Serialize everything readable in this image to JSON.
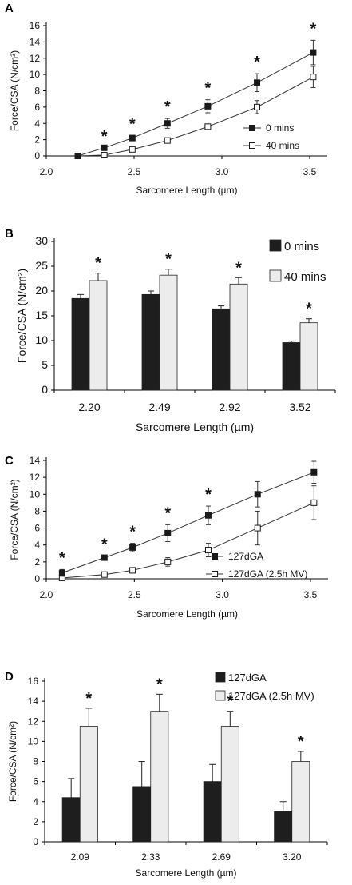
{
  "panels": [
    {
      "label": "A",
      "chart_data": {
        "type": "line",
        "xlabel": "Sarcomere Length (µm)",
        "ylabel": "Force/CSA (N/cm²)",
        "xlim": [
          2.0,
          3.6
        ],
        "ylim": [
          0,
          16
        ],
        "xticks": [
          "2.0",
          "2.5",
          "3.0",
          "3.5"
        ],
        "yticks": [
          "0",
          "2",
          "4",
          "6",
          "8",
          "10",
          "12",
          "14",
          "16"
        ],
        "legend_position": "right",
        "series": [
          {
            "name": "0 mins",
            "marker": "filled-square",
            "x": [
              2.18,
              2.33,
              2.49,
              2.69,
              2.92,
              3.2,
              3.52
            ],
            "y": [
              0.0,
              1.0,
              2.2,
              4.0,
              6.1,
              9.0,
              12.7
            ],
            "err": [
              0,
              0,
              0.3,
              0.6,
              0.8,
              1.1,
              1.5
            ]
          },
          {
            "name": "40 mins",
            "marker": "open-square",
            "x": [
              2.18,
              2.33,
              2.49,
              2.69,
              2.92,
              3.2,
              3.52
            ],
            "y": [
              0.0,
              0.1,
              0.8,
              1.9,
              3.6,
              6.0,
              9.7
            ],
            "err": [
              0,
              0,
              0,
              0,
              0,
              0.8,
              1.3
            ]
          }
        ],
        "significance_x": [
          2.33,
          2.49,
          2.69,
          2.92,
          3.2,
          3.52
        ],
        "significance_mark": "*"
      }
    },
    {
      "label": "B",
      "chart_data": {
        "type": "bar",
        "xlabel": "Sarcomere Length (µm)",
        "ylabel": "Force/CSA (N/cm²)",
        "ylim": [
          0,
          30
        ],
        "yticks": [
          "0",
          "5",
          "10",
          "15",
          "20",
          "25",
          "30"
        ],
        "categories": [
          "2.20",
          "2.49",
          "2.92",
          "3.52"
        ],
        "legend_position": "top-right",
        "series": [
          {
            "name": "0 mins",
            "color": "#1e1e1e",
            "values": [
              18.5,
              19.3,
              16.4,
              9.6
            ],
            "err": [
              0.8,
              0.7,
              0.6,
              0.3
            ]
          },
          {
            "name": "40 mins",
            "color": "#ececec",
            "values": [
              22.1,
              23.2,
              21.4,
              13.6
            ],
            "err": [
              1.5,
              1.2,
              1.3,
              0.8
            ]
          }
        ],
        "significance_series": "40 mins",
        "significance_mark": "*"
      }
    },
    {
      "label": "C",
      "chart_data": {
        "type": "line",
        "xlabel": "Sarcomere Length (µm)",
        "ylabel": "Force/CSA (N/cm²)",
        "xlim": [
          2.0,
          3.6
        ],
        "ylim": [
          0,
          14
        ],
        "xticks": [
          "2.0",
          "2.5",
          "3.0",
          "3.5"
        ],
        "yticks": [
          "0",
          "2",
          "4",
          "6",
          "8",
          "10",
          "12",
          "14"
        ],
        "legend_position": "bottom-right",
        "series": [
          {
            "name": "127dGA",
            "marker": "filled-square",
            "x": [
              2.09,
              2.33,
              2.49,
              2.69,
              2.92,
              3.2,
              3.52
            ],
            "y": [
              0.7,
              2.5,
              3.7,
              5.4,
              7.5,
              10.0,
              12.6
            ],
            "err": [
              0.4,
              0.2,
              0.5,
              1.0,
              1.1,
              1.5,
              1.3
            ]
          },
          {
            "name": "127dGA (2.5h MV)",
            "marker": "open-square",
            "x": [
              2.09,
              2.33,
              2.49,
              2.69,
              2.92,
              3.2,
              3.52
            ],
            "y": [
              0.1,
              0.5,
              1.0,
              2.0,
              3.4,
              6.0,
              9.0
            ],
            "err": [
              0,
              0,
              0,
              0.5,
              0.8,
              2.0,
              2.0
            ]
          }
        ],
        "significance_x": [
          2.09,
          2.33,
          2.49,
          2.69,
          2.92
        ],
        "significance_mark": "*"
      }
    },
    {
      "label": "D",
      "chart_data": {
        "type": "bar",
        "xlabel": "Sarcomere Length (µm)",
        "ylabel": "Force/CSA (N/cm²)",
        "ylim": [
          0,
          16
        ],
        "yticks": [
          "0",
          "2",
          "4",
          "6",
          "8",
          "10",
          "12",
          "14",
          "16"
        ],
        "categories": [
          "2.09",
          "2.33",
          "2.69",
          "3.20"
        ],
        "legend_position": "top-right",
        "series": [
          {
            "name": "127dGA",
            "color": "#1e1e1e",
            "values": [
              4.4,
              5.5,
              6.0,
              3.0
            ],
            "err": [
              1.9,
              2.5,
              1.7,
              1.0
            ]
          },
          {
            "name": "127dGA (2.5h MV)",
            "color": "#ececec",
            "values": [
              11.5,
              13.0,
              11.5,
              8.0
            ],
            "err": [
              1.8,
              1.7,
              1.5,
              1.0
            ]
          }
        ],
        "significance_series": "127dGA (2.5h MV)",
        "significance_mark": "*"
      }
    }
  ]
}
